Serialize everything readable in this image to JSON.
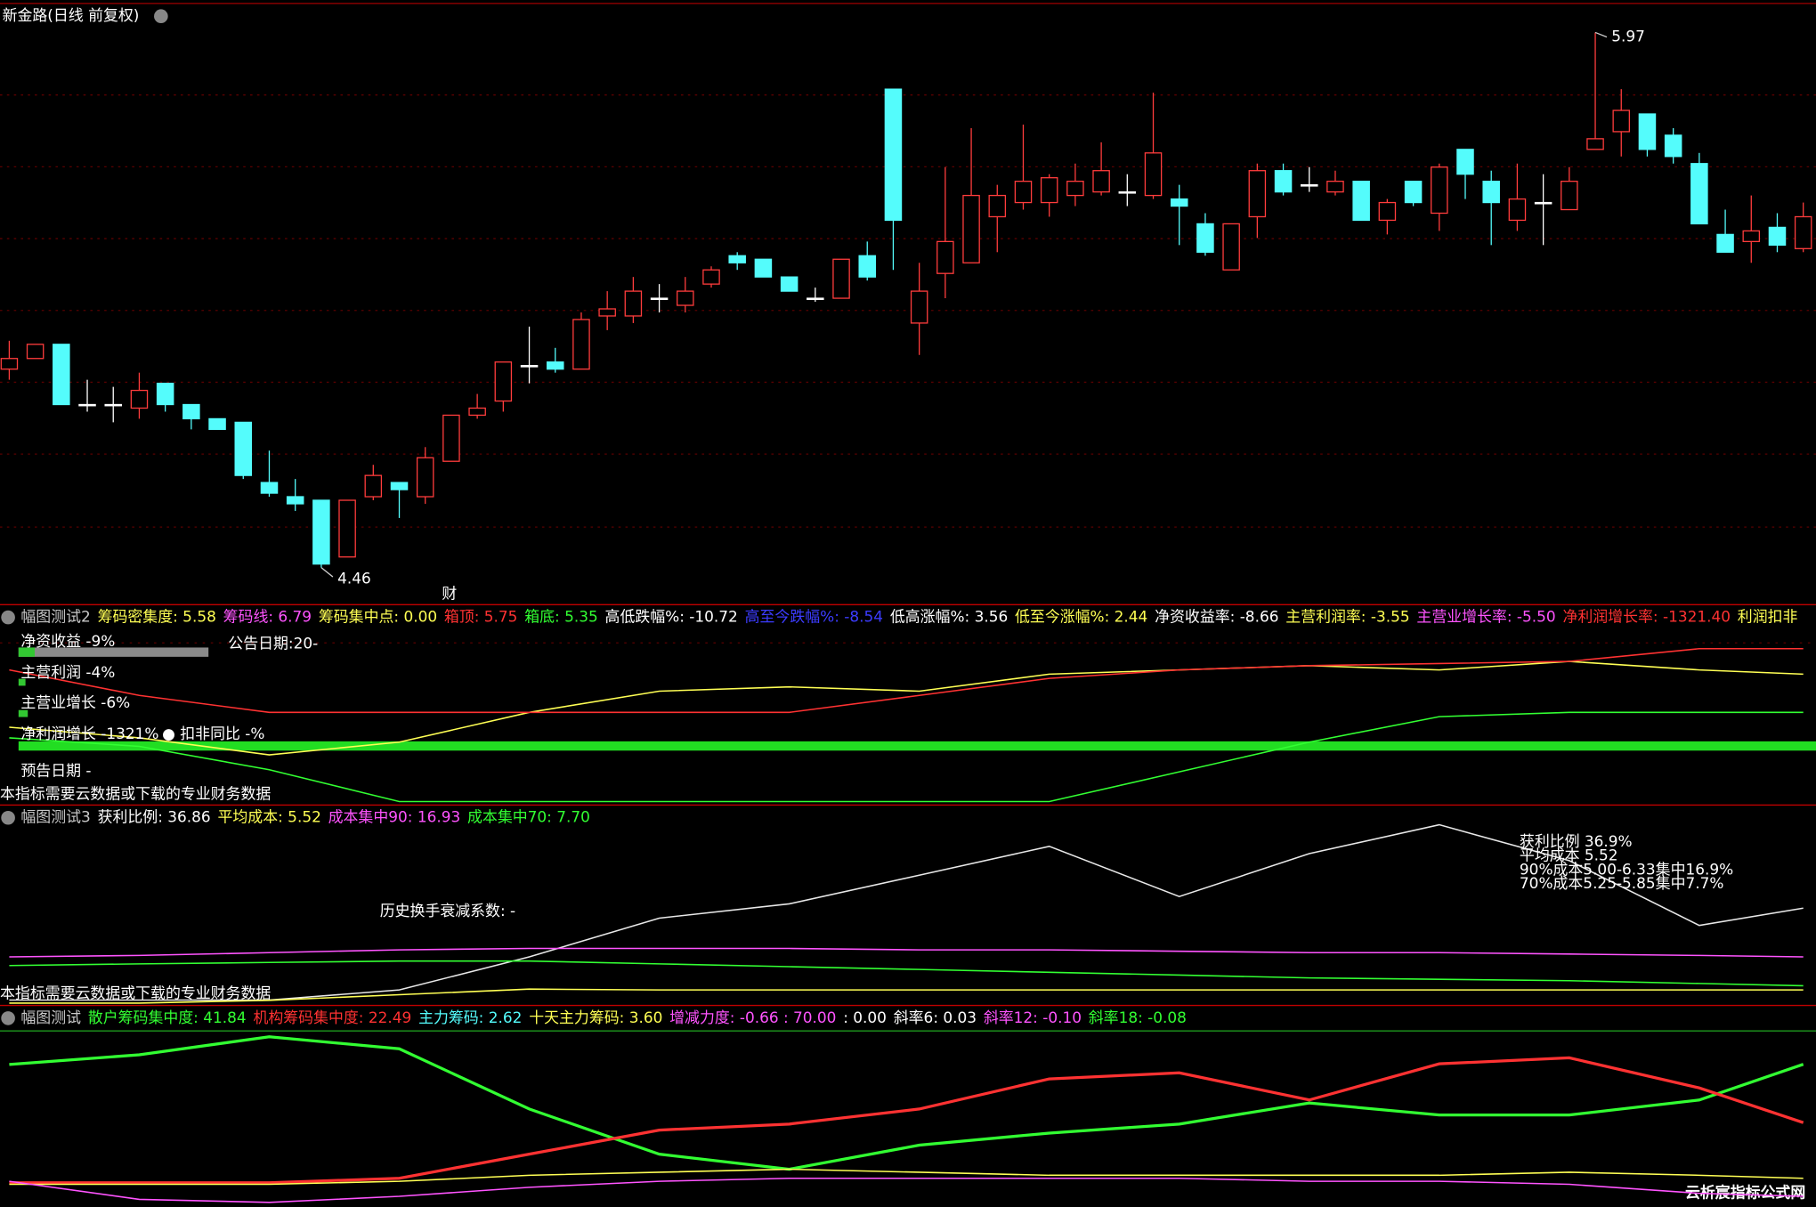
{
  "title": "新金路(日线 前复权)",
  "price_panel": {
    "type": "candlestick",
    "open": [
      5.02,
      5.05,
      5.09,
      4.92,
      4.92,
      4.91,
      4.98,
      4.92,
      4.88,
      4.87,
      4.7,
      4.66,
      4.65,
      4.49,
      4.66,
      4.7,
      4.66,
      4.76,
      4.89,
      4.93,
      5.03,
      5.04,
      5.02,
      5.17,
      5.17,
      5.22,
      5.2,
      5.26,
      5.34,
      5.33,
      5.28,
      5.22,
      5.22,
      5.34,
      5.81,
      5.15,
      5.29,
      5.32,
      5.45,
      5.49,
      5.49,
      5.51,
      5.52,
      5.52,
      5.51,
      5.5,
      5.43,
      5.3,
      5.45,
      5.58,
      5.54,
      5.52,
      5.55,
      5.44,
      5.55,
      5.46,
      5.64,
      5.55,
      5.44,
      5.49,
      5.47,
      5.64,
      5.69,
      5.74,
      5.68,
      5.6,
      5.4,
      5.38,
      5.42,
      5.36
    ],
    "high": [
      5.1,
      5.09,
      5.09,
      4.99,
      4.97,
      5.01,
      4.98,
      4.92,
      4.88,
      4.87,
      4.79,
      4.71,
      4.65,
      4.65,
      4.75,
      4.7,
      4.8,
      4.89,
      4.95,
      5.04,
      5.14,
      5.08,
      5.18,
      5.24,
      5.28,
      5.26,
      5.28,
      5.31,
      5.35,
      5.33,
      5.28,
      5.25,
      5.33,
      5.38,
      5.81,
      5.32,
      5.59,
      5.7,
      5.54,
      5.71,
      5.57,
      5.6,
      5.66,
      5.57,
      5.8,
      5.54,
      5.46,
      5.43,
      5.6,
      5.6,
      5.59,
      5.58,
      5.55,
      5.5,
      5.55,
      5.6,
      5.64,
      5.58,
      5.6,
      5.57,
      5.59,
      5.97,
      5.81,
      5.74,
      5.7,
      5.63,
      5.47,
      5.51,
      5.46,
      5.49
    ],
    "low": [
      4.99,
      5.05,
      4.92,
      4.9,
      4.87,
      4.88,
      4.9,
      4.85,
      4.85,
      4.71,
      4.66,
      4.62,
      4.46,
      4.49,
      4.65,
      4.6,
      4.64,
      4.76,
      4.88,
      4.9,
      4.98,
      5.01,
      5.02,
      5.13,
      5.15,
      5.18,
      5.18,
      5.25,
      5.3,
      5.28,
      5.24,
      5.21,
      5.22,
      5.27,
      5.3,
      5.06,
      5.22,
      5.32,
      5.35,
      5.47,
      5.45,
      5.48,
      5.51,
      5.48,
      5.5,
      5.37,
      5.34,
      5.3,
      5.39,
      5.51,
      5.52,
      5.51,
      5.44,
      5.4,
      5.48,
      5.41,
      5.5,
      5.37,
      5.41,
      5.37,
      5.47,
      5.64,
      5.62,
      5.62,
      5.6,
      5.43,
      5.35,
      5.32,
      5.35,
      5.35
    ],
    "close": [
      5.05,
      5.09,
      4.92,
      4.92,
      4.92,
      4.96,
      4.92,
      4.88,
      4.85,
      4.72,
      4.67,
      4.64,
      4.47,
      4.65,
      4.72,
      4.68,
      4.77,
      4.89,
      4.91,
      5.04,
      5.03,
      5.02,
      5.16,
      5.19,
      5.24,
      5.22,
      5.24,
      5.3,
      5.32,
      5.28,
      5.24,
      5.22,
      5.33,
      5.28,
      5.44,
      5.24,
      5.38,
      5.51,
      5.51,
      5.55,
      5.56,
      5.55,
      5.58,
      5.52,
      5.63,
      5.48,
      5.35,
      5.43,
      5.58,
      5.52,
      5.54,
      5.55,
      5.44,
      5.49,
      5.49,
      5.59,
      5.57,
      5.49,
      5.5,
      5.49,
      5.55,
      5.67,
      5.75,
      5.64,
      5.62,
      5.43,
      5.35,
      5.41,
      5.37,
      5.45
    ],
    "high_label": "5.97",
    "low_label": "4.46",
    "marker": "财"
  },
  "panel2": {
    "header": [
      {
        "text": "幅图测试2",
        "color": "#c8c8c8"
      },
      {
        "text": "筹码密集度: 5.58",
        "color": "#ffff54"
      },
      {
        "text": "筹码线: 6.79",
        "color": "#ff54ff"
      },
      {
        "text": "筹码集中点: 0.00",
        "color": "#ffff54"
      },
      {
        "text": "箱顶: 5.75",
        "color": "#ff3232"
      },
      {
        "text": "箱底: 5.35",
        "color": "#32ff32"
      },
      {
        "text": "高低跌幅%: -10.72",
        "color": "#ffffff"
      },
      {
        "text": "高至今跌幅%: -8.54",
        "color": "#3c3cff"
      },
      {
        "text": "低高涨幅%: 3.56",
        "color": "#ffffff"
      },
      {
        "text": "低至今涨幅%: 2.44",
        "color": "#ffff54"
      },
      {
        "text": "净资收益率: -8.66",
        "color": "#ffffff"
      },
      {
        "text": "主营利润率: -3.55",
        "color": "#ffff54"
      },
      {
        "text": "主营业增长率: -5.50",
        "color": "#ff54ff"
      },
      {
        "text": "净利润增长率: -1321.40",
        "color": "#ff3232"
      },
      {
        "text": "利润扣非",
        "color": "#ffff54"
      }
    ],
    "notes": [
      {
        "text": "净资收益 -9%",
        "color": "#e0e0e0"
      },
      {
        "text": "公告日期:20-",
        "color": "#ffffff"
      },
      {
        "text": "主营利润 -4%",
        "color": "#ffff54"
      },
      {
        "text": "主营业增长 -6%",
        "color": "#ff54ff"
      },
      {
        "text": "净利润增长 -1321%",
        "color": "#ff3232"
      },
      {
        "text": "● 扣非同比 -%",
        "color": "#ff3232"
      },
      {
        "text": "预告日期 -",
        "color": "#ffff54"
      },
      {
        "text": "本指标需要云数据或下载的专业财务数据",
        "color": "#808080"
      }
    ],
    "x": [
      0,
      5,
      10,
      15,
      20,
      25,
      30,
      35,
      40,
      45,
      50,
      55,
      60,
      65,
      69
    ],
    "series": [
      {
        "color": "#ffff54",
        "values": [
          40,
          35,
          27,
          33,
          47,
          57,
          59,
          57,
          65,
          67,
          69,
          67,
          71,
          67,
          65
        ]
      },
      {
        "color": "#ff3232",
        "values": [
          67,
          55,
          47,
          47,
          47,
          47,
          47,
          55,
          63,
          67,
          69,
          70,
          71,
          77,
          77
        ]
      },
      {
        "color": "#32ff32",
        "values": [
          35,
          31,
          20,
          5,
          5,
          5,
          5,
          5,
          5,
          19,
          33,
          45,
          47,
          47,
          47
        ]
      }
    ]
  },
  "panel3": {
    "header": [
      {
        "text": "幅图测试3",
        "color": "#c8c8c8"
      },
      {
        "text": "获利比例: 36.86",
        "color": "#ffffff"
      },
      {
        "text": "平均成本: 5.52",
        "color": "#ffff54"
      },
      {
        "text": "成本集中90: 16.93",
        "color": "#ff54ff"
      },
      {
        "text": "成本集中70: 7.70",
        "color": "#32ff32"
      }
    ],
    "notes": [
      {
        "text": "历史换手衰减系数: -",
        "color": "#ffff54"
      },
      {
        "text": "获利比例 36.9%",
        "color": "#ffffff"
      },
      {
        "text": "平均成本 5.52",
        "color": "#ffffff"
      },
      {
        "text": "90%成本5.00-6.33集中16.9%",
        "color": "#ffffff"
      },
      {
        "text": "70%成本5.25-5.85集中7.7%",
        "color": "#ffffff"
      },
      {
        "text": "本指标需要云数据或下载的专业财务数据",
        "color": "#808080"
      }
    ],
    "x": [
      0,
      5,
      10,
      15,
      20,
      25,
      30,
      35,
      40,
      45,
      50,
      55,
      60,
      65,
      69
    ],
    "series": [
      {
        "color": "#e8e8e8",
        "values": [
          4.1,
          4.1,
          4.1,
          7.7,
          19.5,
          33.3,
          38.4,
          48.6,
          58.9,
          41,
          56.3,
          66.6,
          53.8,
          30.7,
          36.86
        ]
      },
      {
        "color": "#ff54ff",
        "values": [
          19.5,
          20,
          21,
          22,
          22.5,
          22.5,
          22.5,
          22,
          22,
          21.5,
          21,
          21,
          20.5,
          20,
          19.5
        ]
      },
      {
        "color": "#32ff32",
        "values": [
          16.4,
          17,
          17.5,
          18,
          18,
          17,
          16,
          15,
          14,
          13,
          12,
          11.5,
          11,
          10,
          9.2
        ]
      },
      {
        "color": "#ffff54",
        "values": [
          3,
          3,
          4,
          6,
          8,
          7.7,
          7.7,
          7.7,
          7.7,
          7.7,
          7.7,
          7.7,
          7.7,
          7.7,
          7.7
        ]
      }
    ]
  },
  "panel4": {
    "header": [
      {
        "text": "幅图测试",
        "color": "#c8c8c8"
      },
      {
        "text": "散户筹码集中度: 41.84",
        "color": "#32ff32"
      },
      {
        "text": "机构筹码集中度: 22.49",
        "color": "#ff3232"
      },
      {
        "text": "主力筹码: 2.62",
        "color": "#54fcfc"
      },
      {
        "text": "十天主力筹码: 3.60",
        "color": "#ffff54"
      },
      {
        "text": "增减力度: -0.66 : 70.00",
        "color": "#ff54ff"
      },
      {
        "text": ": 0.00",
        "color": "#ffffff"
      },
      {
        "text": "斜率6: 0.03",
        "color": "#ffffff"
      },
      {
        "text": "斜率12: -0.10",
        "color": "#ff54ff"
      },
      {
        "text": "斜率18: -0.08",
        "color": "#32ff32"
      }
    ],
    "x": [
      0,
      5,
      10,
      15,
      20,
      25,
      30,
      35,
      40,
      45,
      50,
      55,
      60,
      65,
      69
    ],
    "series": [
      {
        "color": "#32ff32",
        "values": [
          41.8,
          45,
          51,
          47,
          27,
          12,
          7,
          15,
          19,
          22,
          29,
          25,
          25,
          30,
          41.84
        ]
      },
      {
        "color": "#ff3232",
        "values": [
          2.5,
          2.5,
          2.5,
          4,
          12,
          20,
          22,
          27,
          37,
          39,
          30,
          42,
          44,
          34,
          22.49
        ]
      },
      {
        "color": "#ffff54",
        "values": [
          2,
          2,
          2,
          3,
          5,
          6,
          7,
          6,
          5,
          5,
          5,
          5,
          6,
          5,
          4
        ]
      },
      {
        "color": "#ff54ff",
        "values": [
          3,
          -3,
          -4,
          -2,
          1,
          3,
          4,
          4,
          4,
          4,
          3,
          3,
          2,
          -1,
          -2
        ]
      }
    ]
  },
  "watermark": "云析宸指标公式网"
}
